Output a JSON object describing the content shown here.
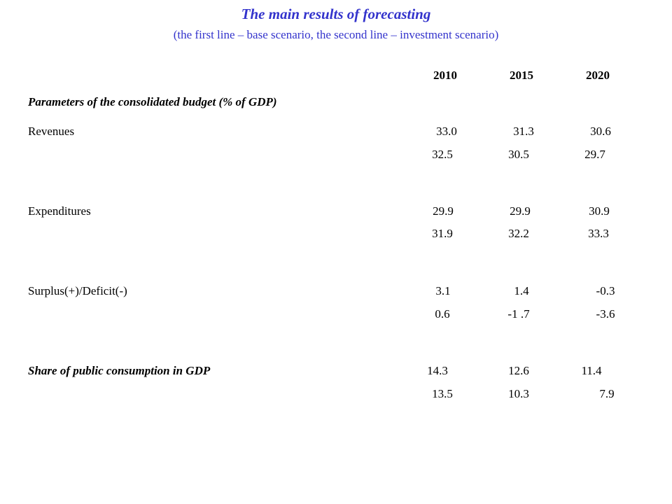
{
  "title": "The main results of forecasting",
  "subtitle": "(the first line – base scenario, the second line – investment scenario)",
  "years": [
    "2010",
    "2015",
    "2020"
  ],
  "section_heading": "Parameters of the consolidated budget (% of GDP)",
  "rows": {
    "revenues": {
      "label": "Revenues",
      "base": [
        "33.0",
        "31.3",
        "30.6"
      ],
      "investment": [
        "32.5",
        "30.5",
        "29.7"
      ]
    },
    "expenditures": {
      "label": "Expenditures",
      "base": [
        "29.9",
        "29.9",
        "30.9"
      ],
      "investment": [
        "31.9",
        "32.2",
        "33.3"
      ]
    },
    "surplus": {
      "label": "Surplus(+)/Deficit(-)",
      "base": [
        "3.1",
        "1.4",
        "-0.3"
      ],
      "investment": [
        "0.6",
        "-1 .7",
        "-3.6"
      ]
    },
    "public_consumption": {
      "label": "Share of public consumption in GDP",
      "base": [
        "14.3",
        "12.6",
        "11.4"
      ],
      "investment": [
        "13.5",
        "10.3",
        "7.9"
      ]
    }
  },
  "colors": {
    "title": "#3333cc",
    "text": "#000000",
    "background": "#ffffff"
  }
}
